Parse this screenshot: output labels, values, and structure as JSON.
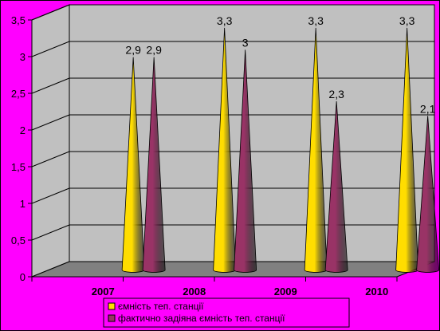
{
  "chart_data": {
    "type": "bar",
    "subtype": "3d-cone",
    "categories": [
      "2007",
      "2008",
      "2009",
      "2010"
    ],
    "series": [
      {
        "name": "ємність теп. станції",
        "values": [
          2.9,
          3.3,
          3.3,
          3.3
        ],
        "labels": [
          "2,9",
          "3,3",
          "3,3",
          "3,3"
        ],
        "color": "#ffdd00"
      },
      {
        "name": "фактично задіяна ємність теп. станції",
        "values": [
          2.9,
          3,
          2.3,
          2.1
        ],
        "labels": [
          "2,9",
          "3",
          "2,3",
          "2,1"
        ],
        "color": "#993366"
      }
    ],
    "ylim": [
      0,
      3.5
    ],
    "yticks": [
      "0",
      "0,5",
      "1",
      "1,5",
      "2",
      "2,5",
      "3",
      "3,5"
    ],
    "grid": true,
    "legend_position": "bottom",
    "title": "",
    "xlabel": "",
    "ylabel": "",
    "colors": {
      "background": "#ff00ff",
      "plot_wall": "#c0c0c0",
      "floor": "#808080"
    }
  }
}
